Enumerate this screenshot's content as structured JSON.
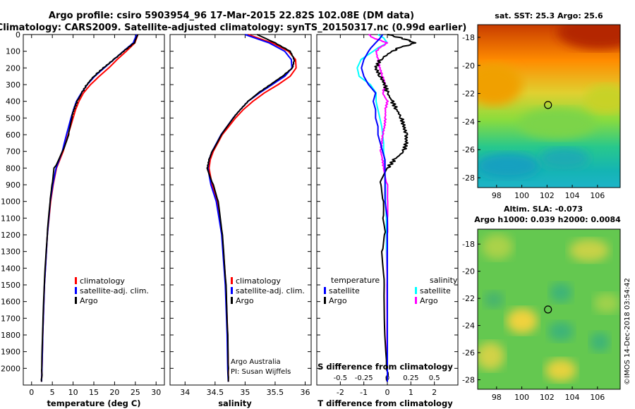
{
  "header": {
    "line1": "Argo profile: csiro 5903954_96 17-Mar-2015 22.82S 102.08E (DM data)",
    "line2": "Climatology: CARS2009. Satellite-adjusted climatology: synTS_20150317.nc (0.99d earlier)"
  },
  "colors": {
    "climatology": "#ff0000",
    "satellite": "#0000ff",
    "argo": "#000000",
    "sat_salinity": "#00ffff",
    "argo_salinity": "#ff00ff"
  },
  "chart_data": [
    {
      "type": "line",
      "name": "temperature-profile",
      "xlabel": "temperature (deg C)",
      "xlim": [
        -2,
        32
      ],
      "ylim": [
        2100,
        0
      ],
      "xticks": [
        "0",
        "5",
        "10",
        "15",
        "20",
        "25",
        "30"
      ],
      "yticks": [
        "0",
        "100",
        "200",
        "300",
        "400",
        "500",
        "600",
        "700",
        "800",
        "900",
        "1000",
        "1100",
        "1200",
        "1300",
        "1400",
        "1500",
        "1600",
        "1700",
        "1800",
        "1900",
        "2000"
      ],
      "legend": {
        "climatology": "climatology",
        "satellite": "satellite-adj. clim.",
        "argo": "Argo"
      },
      "depth": [
        0,
        50,
        100,
        150,
        200,
        250,
        300,
        350,
        400,
        450,
        500,
        600,
        700,
        800,
        900,
        1000,
        1200,
        1500,
        1800,
        2000,
        2080
      ],
      "series": [
        {
          "name": "climatology",
          "values": [
            25.6,
            24.9,
            22.8,
            20.6,
            18.6,
            16.3,
            14.2,
            12.5,
            11.4,
            10.6,
            10.0,
            8.8,
            7.6,
            6.0,
            5.2,
            4.6,
            3.8,
            3.1,
            2.7,
            2.5,
            2.4
          ]
        },
        {
          "name": "satellite",
          "values": [
            25.3,
            24.5,
            22.1,
            19.8,
            17.5,
            15.2,
            13.4,
            12.0,
            10.8,
            10.1,
            9.5,
            8.4,
            7.4,
            5.9,
            5.1,
            4.5,
            3.8,
            3.1,
            2.7,
            2.5,
            2.4
          ]
        },
        {
          "name": "argo",
          "values": [
            25.6,
            24.7,
            22.2,
            19.8,
            17.3,
            15.0,
            13.3,
            12.1,
            11.0,
            10.2,
            9.6,
            8.8,
            7.4,
            5.5,
            5.0,
            4.5,
            3.8,
            3.1,
            2.7,
            2.5,
            2.4
          ]
        }
      ]
    },
    {
      "type": "line",
      "name": "salinity-profile",
      "xlabel": "salinity",
      "xlim": [
        33.75,
        36.1
      ],
      "ylim": [
        2100,
        0
      ],
      "xticks": [
        "34",
        "34.5",
        "35",
        "35.5",
        "36"
      ],
      "legend": {
        "climatology": "climatology",
        "satellite": "satellite-adj. clim.",
        "argo": "Argo"
      },
      "credit1": "Argo Australia",
      "credit2": "PI: Susan Wijffels",
      "depth": [
        0,
        50,
        100,
        150,
        200,
        250,
        300,
        350,
        400,
        450,
        500,
        600,
        700,
        750,
        800,
        900,
        1000,
        1200,
        1500,
        1800,
        2000,
        2080
      ],
      "series": [
        {
          "name": "climatology",
          "values": [
            35.05,
            35.45,
            35.72,
            35.84,
            35.85,
            35.75,
            35.55,
            35.32,
            35.13,
            34.97,
            34.84,
            34.62,
            34.47,
            34.42,
            34.4,
            34.45,
            34.54,
            34.62,
            34.68,
            34.71,
            34.72,
            34.72
          ]
        },
        {
          "name": "satellite",
          "values": [
            35.0,
            35.4,
            35.66,
            35.77,
            35.78,
            35.66,
            35.45,
            35.24,
            35.05,
            34.92,
            34.8,
            34.6,
            34.45,
            34.4,
            34.38,
            34.43,
            34.52,
            34.61,
            34.67,
            34.7,
            34.71,
            34.72
          ]
        },
        {
          "name": "argo",
          "values": [
            35.2,
            35.5,
            35.75,
            35.82,
            35.79,
            35.62,
            35.42,
            35.22,
            35.05,
            34.92,
            34.8,
            34.6,
            34.45,
            34.4,
            34.37,
            34.47,
            34.55,
            34.62,
            34.68,
            34.71,
            34.72,
            34.72
          ]
        }
      ]
    },
    {
      "type": "line",
      "name": "difference-profile",
      "xlabel": "T difference from climatology",
      "xlabel_top": "S difference from climatology",
      "xlim": [
        -3,
        3
      ],
      "s_xlim": [
        -0.75,
        0.75
      ],
      "ylim": [
        2100,
        0
      ],
      "xticks": [
        "-2",
        "-1",
        "0",
        "1",
        "2"
      ],
      "s_xticks": [
        "-0.5",
        "-0.25",
        "0",
        "0.25",
        "0.5"
      ],
      "legend": {
        "temperature": "temperature",
        "salinity": "salinity",
        "satellite": "satellite",
        "argo": "Argo"
      },
      "depth": [
        0,
        20,
        50,
        80,
        100,
        150,
        200,
        250,
        300,
        350,
        400,
        450,
        500,
        550,
        600,
        650,
        700,
        750,
        800,
        900,
        1000,
        1100,
        1200,
        1300,
        1500,
        1700,
        2000,
        2080
      ],
      "series": [
        {
          "name": "temperature-satellite",
          "values": [
            -0.2,
            -0.3,
            -0.5,
            -0.7,
            -0.8,
            -1.0,
            -1.1,
            -1.0,
            -0.8,
            -0.5,
            -0.6,
            -0.5,
            -0.5,
            -0.4,
            -0.4,
            -0.3,
            -0.2,
            -0.1,
            -0.1,
            -0.1,
            -0.1,
            0.0,
            0.0,
            0.0,
            0.0,
            0.0,
            0.0,
            0.0
          ]
        },
        {
          "name": "temperature-argo",
          "values": [
            0.0,
            0.6,
            1.2,
            0.5,
            0.2,
            -0.3,
            -0.5,
            -0.3,
            -0.1,
            0.0,
            0.2,
            0.4,
            0.6,
            0.7,
            0.8,
            0.8,
            0.7,
            0.3,
            0.0,
            -0.3,
            -0.2,
            -0.2,
            -0.1,
            -0.2,
            -0.1,
            -0.1,
            0.0,
            0.0
          ]
        },
        {
          "name": "salinity-satellite",
          "values": [
            -0.1,
            -0.04,
            0.0,
            -0.1,
            -0.15,
            -0.28,
            -0.32,
            -0.3,
            -0.18,
            -0.12,
            -0.12,
            -0.1,
            -0.08,
            -0.06,
            -0.05,
            -0.04,
            -0.04,
            -0.03,
            -0.03,
            -0.02,
            -0.02,
            -0.01,
            -0.01,
            -0.01,
            0.0,
            0.0,
            0.0,
            0.0
          ]
        },
        {
          "name": "salinity-argo",
          "values": [
            -0.2,
            -0.15,
            0.0,
            -0.08,
            -0.12,
            -0.1,
            -0.08,
            -0.05,
            -0.02,
            -0.05,
            0.0,
            -0.02,
            -0.02,
            -0.03,
            -0.05,
            -0.06,
            -0.07,
            -0.05,
            -0.04,
            0.0,
            0.0,
            0.0,
            0.0,
            0.0,
            0.0,
            0.0,
            0.0,
            0.0
          ]
        }
      ]
    },
    {
      "type": "heatmap",
      "name": "sst-map",
      "title": "sat. SST: 25.3 Argo: 25.6",
      "xlim": [
        96.5,
        107.8
      ],
      "ylim": [
        -28.7,
        -17.1
      ],
      "xticks": [
        "98",
        "100",
        "102",
        "104",
        "106"
      ],
      "yticks": [
        "-18",
        "-20",
        "-22",
        "-24",
        "-26",
        "-28"
      ],
      "marker": {
        "lon": 102.08,
        "lat": -22.82
      }
    },
    {
      "type": "heatmap",
      "name": "sla-map",
      "title_line1": "Altim. SLA: -0.073",
      "title_line2": "Argo h1000: 0.039 h2000: 0.0084",
      "xlim": [
        96.5,
        107.8
      ],
      "ylim": [
        -28.7,
        -16.9
      ],
      "xticks": [
        "98",
        "100",
        "102",
        "104",
        "106"
      ],
      "yticks": [
        "-18",
        "-20",
        "-22",
        "-24",
        "-26",
        "-28"
      ],
      "marker": {
        "lon": 102.08,
        "lat": -22.82
      }
    }
  ],
  "footer": {
    "stamp": "©IMOS 14-Dec-2018 03:54:42"
  }
}
